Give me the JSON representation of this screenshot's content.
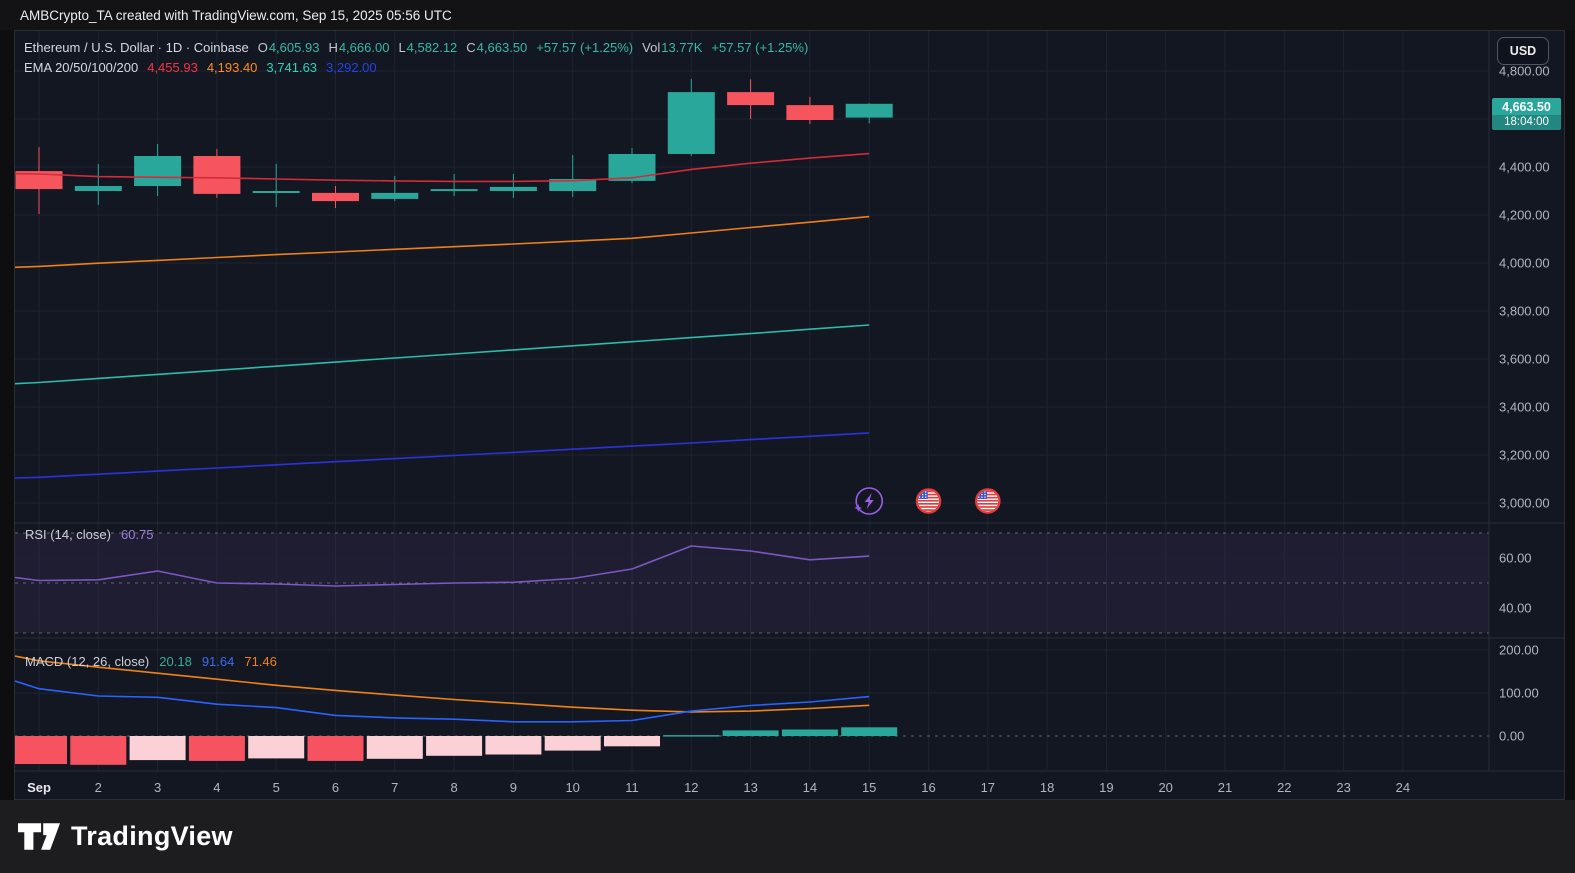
{
  "header": {
    "title": "AMBCrypto_TA created with TradingView.com, Sep 15, 2025 05:56 UTC"
  },
  "toolbar": {
    "currency_label": "USD"
  },
  "legend": {
    "symbol": "Ethereum / U.S. Dollar · 1D · Coinbase",
    "ohlc": [
      {
        "label": "O",
        "value": "4,605.93"
      },
      {
        "label": "H",
        "value": "4,666.00"
      },
      {
        "label": "L",
        "value": "4,582.12"
      },
      {
        "label": "C",
        "value": "4,663.50"
      }
    ],
    "change": "+57.57 (+1.25%)",
    "vol_label": "Vol",
    "vol_value": "13.77K",
    "vol_change": "+57.57 (+1.25%)",
    "ema_label": "EMA 20/50/100/200",
    "ema_values": [
      {
        "value": "4,455.93",
        "color": "#f23645"
      },
      {
        "value": "4,193.40",
        "color": "#ff8d1a"
      },
      {
        "value": "3,741.63",
        "color": "#2fd2bf"
      },
      {
        "value": "3,292.00",
        "color": "#2343e8"
      }
    ]
  },
  "price_badge": {
    "price": "4,663.50",
    "countdown": "18:04:00"
  },
  "rsi_legend": {
    "label": "RSI (14, close)",
    "value": "60.75"
  },
  "macd_legend": {
    "label": "MACD (12, 26, close)",
    "values": [
      {
        "value": "20.18",
        "color": "#2fae9b"
      },
      {
        "value": "91.64",
        "color": "#3e6af0"
      },
      {
        "value": "71.46",
        "color": "#f57f17"
      }
    ]
  },
  "footer": {
    "brand": "TradingView"
  },
  "colors": {
    "background": "#131722",
    "grid": "#1e2330",
    "divider": "#2a2e39",
    "dashed": "#70737e",
    "axis_text": "#b2b5be",
    "up": "#2aa79b",
    "down": "#f6555e",
    "rsi_line": "#7e57c2",
    "rsi_band": "rgba(126,87,194,0.10)",
    "macd_line": "#2962ff",
    "macd_signal": "#ef8318",
    "hist_red": "#f7525f",
    "hist_pink": "#fbd0d6",
    "hist_teal": "#2aa79b",
    "event_purple": "#9b5de5",
    "event_red": "#e23b3b",
    "badge_bg": "#2aa79b"
  },
  "chart_data": [
    {
      "type": "candlestick",
      "panel": "price",
      "title": "Ethereum / U.S. Dollar, 1D, Coinbase",
      "x_labels": [
        "Sep",
        "2",
        "3",
        "4",
        "5",
        "6",
        "7",
        "8",
        "9",
        "10",
        "11",
        "12",
        "13",
        "14",
        "15",
        "16",
        "17",
        "18",
        "19",
        "20",
        "21",
        "22",
        "23",
        "24"
      ],
      "dates": [
        "Sep 1",
        "Sep 2",
        "Sep 3",
        "Sep 4",
        "Sep 5",
        "Sep 6",
        "Sep 7",
        "Sep 8",
        "Sep 9",
        "Sep 10",
        "Sep 11",
        "Sep 12",
        "Sep 13",
        "Sep 14",
        "Sep 15"
      ],
      "ohlc_format": "open,high,low,close",
      "ohlc": [
        [
          4383,
          4483,
          4204,
          4308
        ],
        [
          4300,
          4413,
          4242,
          4321
        ],
        [
          4321,
          4496,
          4279,
          4446
        ],
        [
          4446,
          4475,
          4271,
          4288
        ],
        [
          4292,
          4413,
          4233,
          4300
        ],
        [
          4292,
          4321,
          4229,
          4258
        ],
        [
          4267,
          4363,
          4258,
          4292
        ],
        [
          4300,
          4371,
          4279,
          4308
        ],
        [
          4300,
          4371,
          4271,
          4317
        ],
        [
          4300,
          4450,
          4275,
          4350
        ],
        [
          4342,
          4479,
          4333,
          4454
        ],
        [
          4454,
          4767,
          4446,
          4712
        ],
        [
          4712,
          4765,
          4600,
          4658
        ],
        [
          4658,
          4692,
          4579,
          4596
        ],
        [
          4605.93,
          4666.0,
          4582.12,
          4663.5
        ]
      ],
      "series": [
        {
          "id": "ema20",
          "name": "EMA 20",
          "color": "#d32b39",
          "lead": 4372,
          "values": [
            4371,
            4360,
            4357,
            4355,
            4350,
            4345,
            4342,
            4340,
            4340,
            4343,
            4355,
            4390,
            4416,
            4437,
            4455.93
          ]
        },
        {
          "id": "ema50",
          "name": "EMA 50",
          "color": "#ef7f17",
          "lead": 3982,
          "values": [
            3986,
            3999,
            4011,
            4023,
            4035,
            4046,
            4057,
            4068,
            4079,
            4091,
            4103,
            4125,
            4148,
            4170,
            4193.4
          ]
        },
        {
          "id": "ema100",
          "name": "EMA 100",
          "color": "#2cbcab",
          "lead": 3497,
          "values": [
            3502,
            3519,
            3536,
            3553,
            3570,
            3587,
            3604,
            3621,
            3638,
            3655,
            3672,
            3689,
            3706,
            3724,
            3741.63
          ]
        },
        {
          "id": "ema200",
          "name": "EMA 200",
          "color": "#2b32dd",
          "lead": 3104,
          "values": [
            3107,
            3120,
            3133,
            3146,
            3159,
            3172,
            3185,
            3198,
            3211,
            3224,
            3237,
            3250,
            3264,
            3278,
            3292.0
          ]
        }
      ],
      "grid_values": [
        4800,
        4600,
        4400,
        4200,
        4000,
        3800,
        3600,
        3400,
        3200,
        3000
      ],
      "y_axis": [
        {
          "v": 4800,
          "label": "4,800.00"
        },
        {
          "v": 4400,
          "label": "4,400.00"
        },
        {
          "v": 4200,
          "label": "4,200.00"
        },
        {
          "v": 4000,
          "label": "4,000.00"
        },
        {
          "v": 3800,
          "label": "3,800.00"
        },
        {
          "v": 3600,
          "label": "3,600.00"
        },
        {
          "v": 3400,
          "label": "3,400.00"
        },
        {
          "v": 3200,
          "label": "3,200.00"
        },
        {
          "v": 3000,
          "label": "3,000.00"
        }
      ],
      "ylim": [
        2950,
        4840
      ],
      "last_price": 4663.5
    },
    {
      "type": "line",
      "panel": "rsi",
      "name": "RSI (14, close)",
      "current": 60.75,
      "lead": 52.2,
      "values": [
        51.0,
        51.3,
        54.8,
        50.0,
        49.6,
        48.8,
        49.4,
        50.0,
        50.3,
        51.8,
        55.6,
        64.8,
        62.8,
        59.3,
        60.75
      ],
      "levels": [
        70,
        50,
        30
      ],
      "band": [
        30,
        70
      ],
      "y_axis": [
        {
          "v": 60,
          "label": "60.00"
        },
        {
          "v": 40,
          "label": "40.00"
        }
      ]
    },
    {
      "type": "macd",
      "panel": "macd",
      "name": "MACD (12, 26, close)",
      "current": {
        "hist": 20.18,
        "macd": 91.64,
        "signal": 71.46
      },
      "lead": {
        "macd": 128,
        "signal": 186
      },
      "macd": [
        110,
        93,
        90,
        74,
        66,
        48,
        42,
        39,
        33,
        33,
        36,
        58,
        71,
        79,
        91.64
      ],
      "signal": [
        175,
        160,
        146,
        132,
        118,
        106,
        95,
        85,
        76,
        67,
        60,
        56,
        58,
        64,
        71.46
      ],
      "hist": [
        -65,
        -67,
        -56,
        -58,
        -52,
        -58,
        -53,
        -46,
        -43,
        -34,
        -24,
        2,
        13,
        15,
        20.18
      ],
      "hist_colors": [
        "red",
        "red",
        "pink",
        "red",
        "pink",
        "red",
        "pink",
        "pink",
        "pink",
        "pink",
        "pink",
        "teal",
        "teal",
        "teal",
        "teal"
      ],
      "y_axis": [
        {
          "v": 200,
          "label": "200.00"
        },
        {
          "v": 100,
          "label": "100.00"
        },
        {
          "v": 0,
          "label": "0.00"
        }
      ]
    }
  ],
  "event_icons": [
    {
      "icon": "lightning",
      "day": 15
    },
    {
      "icon": "us-flag",
      "day": 16
    },
    {
      "icon": "us-flag",
      "day": 17
    }
  ]
}
